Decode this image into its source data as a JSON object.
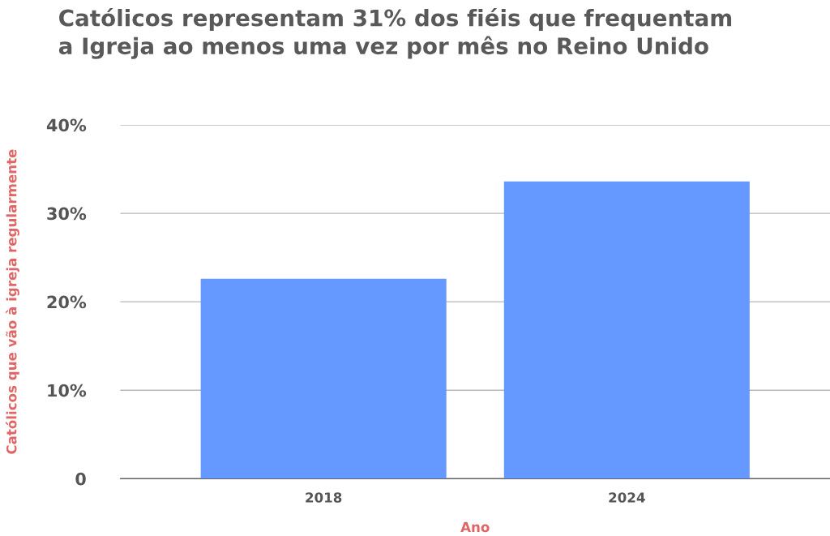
{
  "chart_data": {
    "type": "bar",
    "title": "Católicos representam 31% dos fiéis que frequentam\na Igreja ao menos uma vez por mês no Reino Unido",
    "xlabel": "Ano",
    "ylabel": "Católicos que vão à igreja regularmente",
    "categories": [
      "2018",
      "2024"
    ],
    "values": [
      22.6,
      33.6
    ],
    "color": "#6699ff",
    "ylim": [
      0,
      40
    ],
    "yticks": [
      {
        "value": 0,
        "label": "0"
      },
      {
        "value": 10,
        "label": "10%"
      },
      {
        "value": 20,
        "label": "20%"
      },
      {
        "value": 30,
        "label": "30%"
      },
      {
        "value": 40,
        "label": "40%"
      }
    ],
    "grid": "y",
    "legend": false
  }
}
